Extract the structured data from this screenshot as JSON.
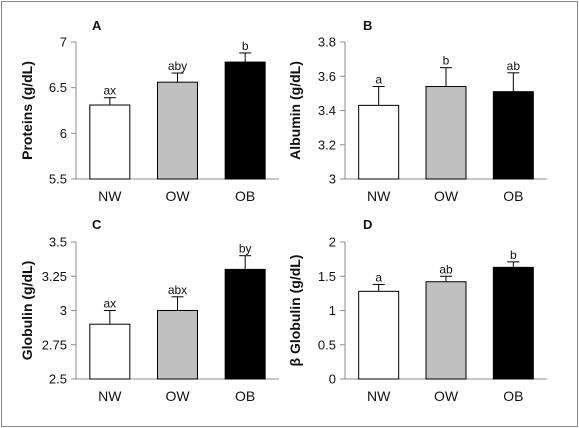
{
  "chart_data": [
    {
      "type": "bar",
      "panel": "A",
      "ylabel": "Proteins (g/dL)",
      "categories": [
        "NW",
        "OW",
        "OB"
      ],
      "values": [
        6.31,
        6.56,
        6.78
      ],
      "errors": [
        0.08,
        0.1,
        0.1
      ],
      "labels": [
        "ax",
        "aby",
        "b"
      ],
      "ylim": [
        5.5,
        7
      ],
      "yticks": [
        "5.5",
        "6",
        "6.5",
        "7"
      ],
      "ytick_values": [
        5.5,
        6,
        6.5,
        7
      ]
    },
    {
      "type": "bar",
      "panel": "B",
      "ylabel": "Albumin (g/dL)",
      "categories": [
        "NW",
        "OW",
        "OB"
      ],
      "values": [
        3.43,
        3.54,
        3.51
      ],
      "errors": [
        0.11,
        0.11,
        0.11
      ],
      "labels": [
        "a",
        "b",
        "ab"
      ],
      "ylim": [
        3,
        3.8
      ],
      "yticks": [
        "3",
        "3.2",
        "3.4",
        "3.6",
        "3.8"
      ],
      "ytick_values": [
        3,
        3.2,
        3.4,
        3.6,
        3.8
      ]
    },
    {
      "type": "bar",
      "panel": "C",
      "ylabel": "Globulin (g/dL)",
      "categories": [
        "NW",
        "OW",
        "OB"
      ],
      "values": [
        2.9,
        3.0,
        3.3
      ],
      "errors": [
        0.1,
        0.1,
        0.1
      ],
      "labels": [
        "ax",
        "abx",
        "by"
      ],
      "ylim": [
        2.5,
        3.5
      ],
      "yticks": [
        "2.5",
        "2.75",
        "3",
        "3.25",
        "3.5"
      ],
      "ytick_values": [
        2.5,
        2.75,
        3,
        3.25,
        3.5
      ]
    },
    {
      "type": "bar",
      "panel": "D",
      "ylabel": "β Globulin (g/dL)",
      "categories": [
        "NW",
        "OW",
        "OB"
      ],
      "values": [
        1.28,
        1.42,
        1.63
      ],
      "errors": [
        0.1,
        0.08,
        0.08
      ],
      "labels": [
        "a",
        "ab",
        "b"
      ],
      "ylim": [
        0,
        2
      ],
      "yticks": [
        "0",
        "0.5",
        "1",
        "1.5",
        "2"
      ],
      "ytick_values": [
        0,
        0.5,
        1,
        1.5,
        2
      ]
    }
  ],
  "colors": {
    "NW": "#ffffff",
    "OW": "#c0c0c0",
    "OB": "#000000",
    "axis": "#8c8c8c",
    "text": "#111111"
  }
}
